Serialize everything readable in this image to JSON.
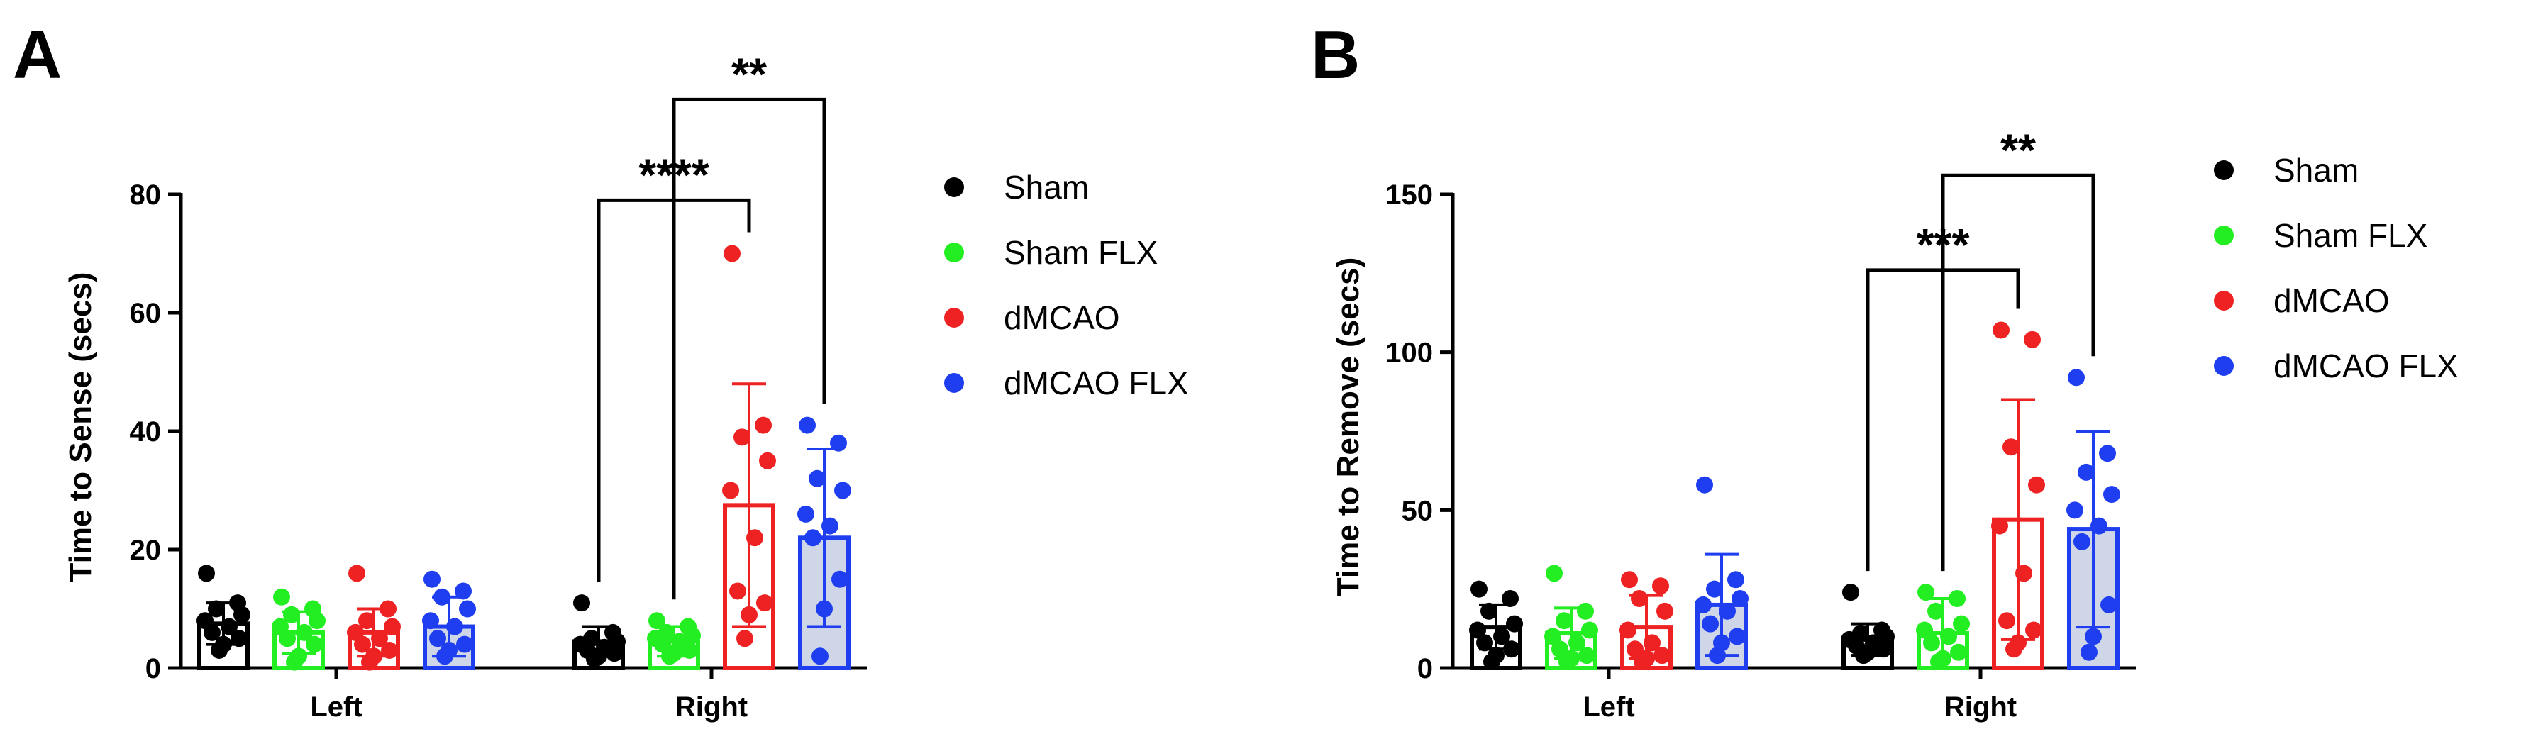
{
  "chart_data": [
    {
      "type": "bar",
      "panel_label": "A",
      "title": "",
      "xlabel": "",
      "ylabel": "Time to Sense (secs)",
      "ylim": [
        0,
        80
      ],
      "yticks": [
        0,
        20,
        40,
        60,
        80
      ],
      "categories": [
        "Left",
        "Right"
      ],
      "legend_position": "right",
      "series": [
        {
          "name": "Sham",
          "color": "#000000",
          "fill": "#ffffff",
          "values": [
            7.5,
            4.5
          ],
          "errors": [
            3.5,
            2.5
          ],
          "points": [
            [
              16,
              11,
              10,
              9,
              8,
              7,
              6,
              5,
              4,
              3
            ],
            [
              11,
              6,
              5,
              4.5,
              4,
              3.5,
              3,
              2.5,
              2,
              1.5
            ]
          ]
        },
        {
          "name": "Sham FLX",
          "color": "#22ee22",
          "fill": "#ffffff",
          "values": [
            6,
            4.5
          ],
          "errors": [
            3.5,
            2.5
          ],
          "points": [
            [
              12,
              10,
              9,
              8,
              7,
              6,
              5,
              4,
              2,
              1
            ],
            [
              8,
              7,
              6,
              5.5,
              5,
              4.5,
              4,
              3,
              2.5,
              2
            ]
          ]
        },
        {
          "name": "dMCAO",
          "color": "#ee2222",
          "fill": "#ffffff",
          "values": [
            6,
            27.5
          ],
          "errors": [
            4,
            20.5
          ],
          "points": [
            [
              16,
              10,
              8,
              7,
              6,
              5,
              4,
              3,
              2,
              1
            ],
            [
              70,
              41,
              39,
              35,
              30,
              22,
              13,
              11,
              9,
              5
            ]
          ]
        },
        {
          "name": "dMCAO FLX",
          "color": "#1e3ef0",
          "fill": "#cfd6e8",
          "values": [
            7,
            22
          ],
          "errors": [
            5,
            15
          ],
          "points": [
            [
              15,
              13,
              12,
              10,
              8,
              7,
              5,
              4,
              3,
              2
            ],
            [
              41,
              38,
              32,
              30,
              26,
              24,
              22,
              15,
              10,
              2
            ]
          ]
        }
      ],
      "significance": [
        {
          "label": "****",
          "group": "Right",
          "from": "Sham",
          "to": "dMCAO",
          "y": 79
        },
        {
          "label": "**",
          "group": "Right",
          "from": "Sham FLX",
          "to": "dMCAO FLX",
          "y": 96
        }
      ]
    },
    {
      "type": "bar",
      "panel_label": "B",
      "title": "",
      "xlabel": "",
      "ylabel": "Time to Remove (secs)",
      "ylim": [
        0,
        150
      ],
      "yticks": [
        0,
        50,
        100,
        150
      ],
      "categories": [
        "Left",
        "Right"
      ],
      "legend_position": "right",
      "series": [
        {
          "name": "Sham",
          "color": "#000000",
          "fill": "#ffffff",
          "values": [
            13,
            9
          ],
          "errors": [
            7,
            5
          ],
          "points": [
            [
              25,
              22,
              18,
              14,
              12,
              10,
              8,
              6,
              4,
              2
            ],
            [
              24,
              12,
              11,
              10,
              9,
              8,
              7,
              6,
              5,
              4
            ]
          ]
        },
        {
          "name": "Sham FLX",
          "color": "#22ee22",
          "fill": "#ffffff",
          "values": [
            11,
            11
          ],
          "errors": [
            8,
            11
          ],
          "points": [
            [
              30,
              18,
              15,
              12,
              10,
              8,
              6,
              4,
              3,
              2
            ],
            [
              24,
              22,
              18,
              14,
              12,
              10,
              8,
              5,
              3,
              2
            ]
          ]
        },
        {
          "name": "dMCAO",
          "color": "#ee2222",
          "fill": "#ffffff",
          "values": [
            13,
            47
          ],
          "errors": [
            10,
            38
          ],
          "points": [
            [
              28,
              26,
              22,
              18,
              12,
              8,
              6,
              4,
              3,
              2
            ],
            [
              107,
              104,
              70,
              58,
              45,
              30,
              15,
              12,
              8,
              6
            ]
          ]
        },
        {
          "name": "dMCAO FLX",
          "color": "#1e3ef0",
          "fill": "#cfd6e8",
          "values": [
            20,
            44
          ],
          "errors": [
            16,
            31
          ],
          "points": [
            [
              58,
              28,
              25,
              22,
              20,
              18,
              14,
              10,
              8,
              4
            ],
            [
              92,
              68,
              62,
              55,
              50,
              45,
              40,
              20,
              10,
              5
            ]
          ]
        }
      ],
      "significance": [
        {
          "label": "***",
          "group": "Right",
          "from": "Sham",
          "to": "dMCAO",
          "y": 126
        },
        {
          "label": "**",
          "group": "Right",
          "from": "Sham FLX",
          "to": "dMCAO FLX",
          "y": 156
        }
      ]
    }
  ]
}
